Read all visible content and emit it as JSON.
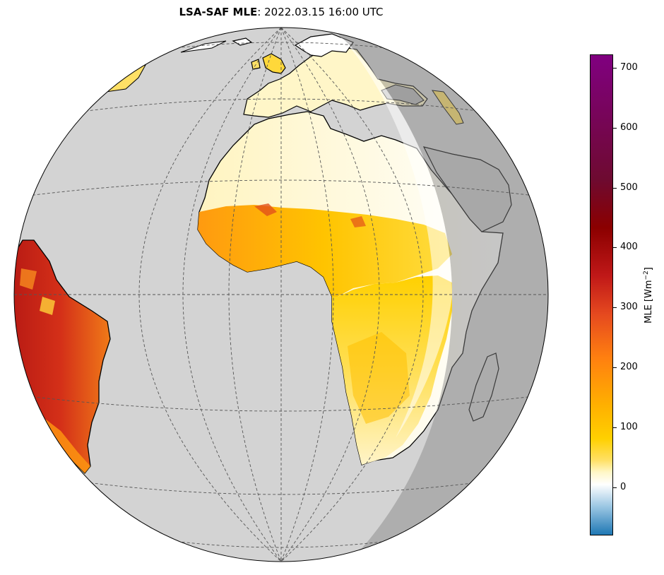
{
  "title": {
    "bold": "LSA-SAF MLE",
    "separator": ":",
    "text": "2022.03.15 16:00 UTC"
  },
  "colorbar": {
    "label": "MLE [Wm",
    "label_exp": "−2",
    "label_end": "]",
    "min": -75,
    "max": 720,
    "ticks": [
      "700",
      "600",
      "500",
      "400",
      "300",
      "200",
      "100",
      "0"
    ],
    "colors": [
      "#1f78b4",
      "#ffffff",
      "#ffd000",
      "#ff7f10",
      "#c01818",
      "#8b0000",
      "#800080"
    ]
  },
  "map": {
    "projection": "orthographic",
    "ocean_color": "#d3d3d3",
    "night_color": "#a9a9a9",
    "gridlines": "dashed"
  }
}
